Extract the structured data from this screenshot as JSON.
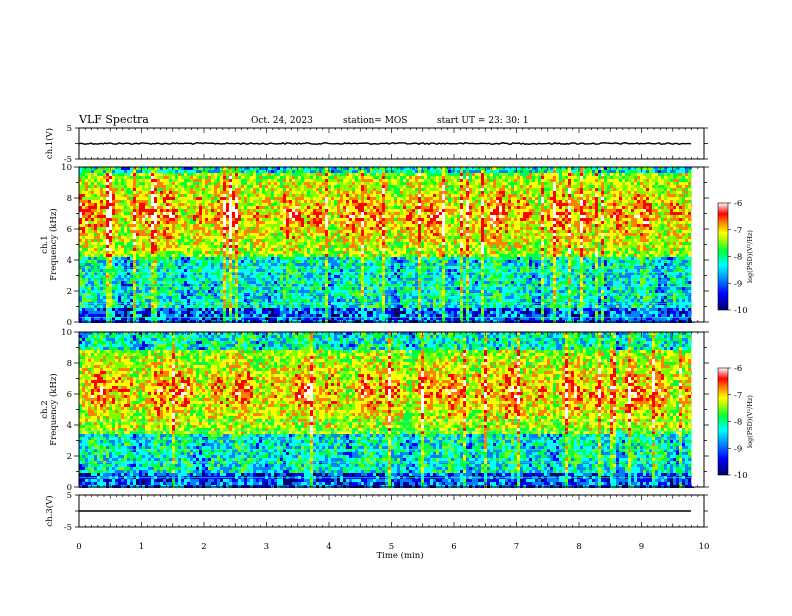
{
  "header": {
    "title": "VLF Spectra",
    "date": "Oct. 24, 2023",
    "station": "station= MOS",
    "start": "start  UT  =   23: 30: 1"
  },
  "chart_data": [
    {
      "type": "line",
      "panel": "ch1-waveform",
      "ylabel": "ch.1(V)",
      "ylim": [
        -5,
        5
      ],
      "y_ticks": [
        "5",
        "-5"
      ],
      "xlim": [
        0,
        10
      ],
      "series_level": 0
    },
    {
      "type": "heatmap",
      "panel": "ch1-spectrogram",
      "ylabel": "ch.1\nFrequency (kHz)",
      "ylim": [
        0,
        10
      ],
      "y_ticks": [
        "0",
        "2",
        "4",
        "6",
        "8",
        "10"
      ],
      "xlim": [
        0,
        10
      ],
      "data_end_min": 9.8,
      "strong_band_khz": [
        4.2,
        9.8
      ],
      "colorbar": {
        "label": "log(PSD)(V²/Hz)",
        "min": -10,
        "max": -6,
        "ticks": [
          "-6",
          "-7",
          "-8",
          "-9",
          "-10"
        ]
      }
    },
    {
      "type": "heatmap",
      "panel": "ch2-spectrogram",
      "ylabel": "ch.2\nFrequency (kHz)",
      "ylim": [
        0,
        10
      ],
      "y_ticks": [
        "0",
        "2",
        "4",
        "6",
        "8",
        "10"
      ],
      "xlim": [
        0,
        10
      ],
      "data_end_min": 9.8,
      "strong_band_khz": [
        3.5,
        9.0
      ],
      "colorbar": {
        "label": "log(PSD)(V²/Hz)",
        "min": -10,
        "max": -6,
        "ticks": [
          "-6",
          "-7",
          "-8",
          "-9",
          "-10"
        ]
      }
    },
    {
      "type": "line",
      "panel": "ch3-waveform",
      "ylabel": "ch.3(V)",
      "ylim": [
        -5,
        5
      ],
      "y_ticks": [
        "5",
        "-5"
      ],
      "xlim": [
        0,
        10
      ],
      "series_level": 0
    }
  ],
  "xaxis": {
    "label": "Time  (min)",
    "ticks": [
      "0",
      "1",
      "2",
      "3",
      "4",
      "5",
      "6",
      "7",
      "8",
      "9",
      "10"
    ]
  },
  "colors": {
    "colormap": [
      "#00006a",
      "#0000ff",
      "#0080ff",
      "#00ffff",
      "#00ff40",
      "#80ff00",
      "#ffff00",
      "#ff8000",
      "#ff0000",
      "#ffffff"
    ]
  }
}
